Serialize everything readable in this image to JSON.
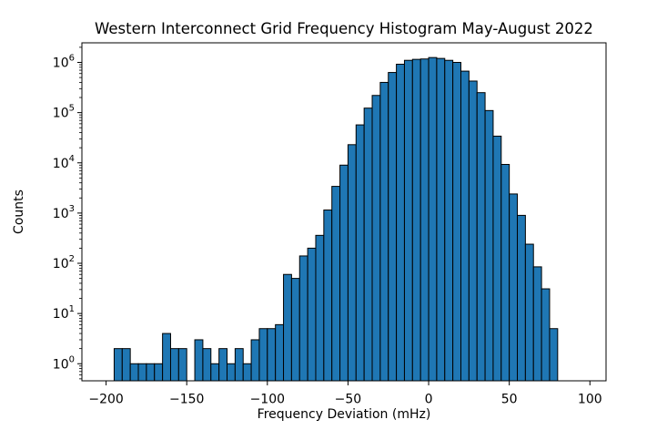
{
  "figure": {
    "background": "#ffffff"
  },
  "chart_data": {
    "type": "bar",
    "subtype": "histogram",
    "title": "Western Interconnect Grid Frequency Histogram May-August 2022",
    "xlabel": "Frequency Deviation (mHz)",
    "ylabel": "Counts",
    "yscale": "log",
    "grid": false,
    "legend_position": "none",
    "bar_color": "#1f77b4",
    "bar_edge_color": "#000000",
    "bin_start_mhz": -195,
    "bin_width_mhz": 5,
    "counts": [
      2,
      2,
      1,
      1,
      1,
      1,
      4,
      2,
      2,
      0,
      3,
      2,
      1,
      2,
      1,
      2,
      1,
      3,
      5,
      5,
      6,
      60,
      50,
      140,
      200,
      360,
      1150,
      3400,
      9000,
      23000,
      57000,
      123000,
      220000,
      400000,
      630000,
      920000,
      1100000,
      1150000,
      1170000,
      1250000,
      1200000,
      1100000,
      1000000,
      670000,
      425000,
      250000,
      110000,
      34000,
      9300,
      2400,
      900,
      240,
      85,
      31,
      5
    ],
    "xlim": [
      -215,
      110
    ],
    "ylim_log10": [
      -0.34,
      6.39
    ],
    "x_ticks": [
      -200,
      -150,
      -100,
      -50,
      0,
      50,
      100
    ],
    "x_tick_labels": [
      "−200",
      "−150",
      "−100",
      "−50",
      "0",
      "50",
      "100"
    ],
    "y_tick_exponents": [
      0,
      1,
      2,
      3,
      4,
      5,
      6
    ]
  }
}
